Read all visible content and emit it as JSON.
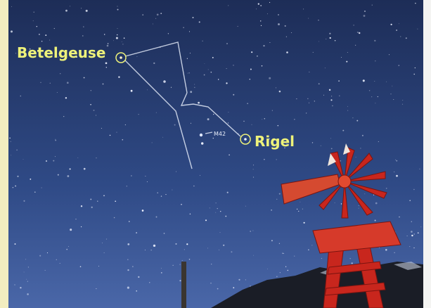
{
  "annotations": {
    "betelgeuse": "Betelgeuse",
    "rigel": "Rigel",
    "m42": "M42"
  }
}
